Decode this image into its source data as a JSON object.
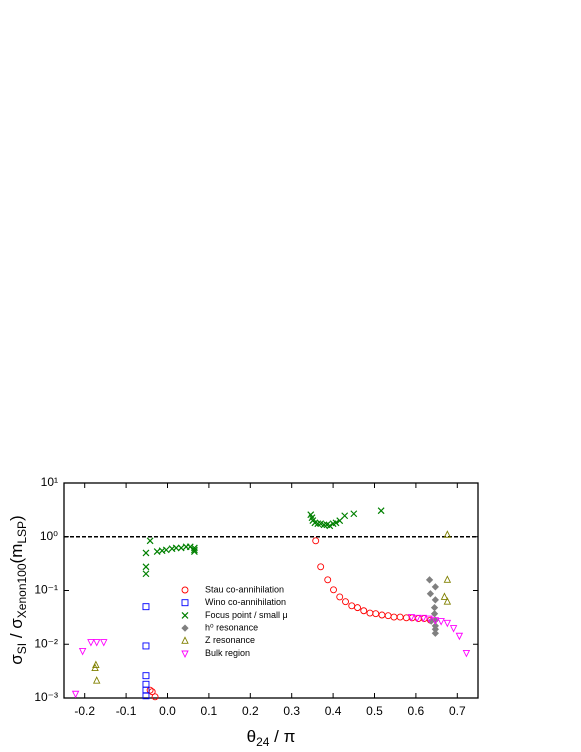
{
  "chart_data": {
    "type": "scatter",
    "xlabel": [
      "θ",
      "24",
      " / π"
    ],
    "ylabel": [
      "σ",
      "SI",
      " / σ",
      "Xenon100",
      "(m",
      "LSP",
      ")"
    ],
    "xlim": [
      -0.25,
      0.75
    ],
    "ylim": [
      0.001,
      10
    ],
    "log_y": true,
    "xticks": [
      -0.2,
      -0.1,
      {
        "value": 0,
        "label": "0.0"
      },
      0.1,
      0.2,
      0.3,
      0.4,
      0.5,
      0.6,
      0.7
    ],
    "yticks": [
      {
        "value": 0.001,
        "label": "10⁻³"
      },
      {
        "value": 0.01,
        "label": "10⁻²"
      },
      {
        "value": 0.1,
        "label": "10⁻¹"
      },
      {
        "value": 1,
        "label": "10⁰"
      },
      {
        "value": 10,
        "label": "10¹"
      }
    ],
    "hline": 1,
    "legend": "lower-left",
    "series": [
      {
        "name": "Stau co-annihilation",
        "color": "#ff0000",
        "marker": "circle",
        "x": [
          0.358,
          0.37,
          0.387,
          0.401,
          0.416,
          0.43,
          0.445,
          0.459,
          0.474,
          0.489,
          0.503,
          0.518,
          0.533,
          0.547,
          0.562,
          0.577,
          0.591,
          0.606,
          0.62,
          0.635,
          -0.042,
          -0.037,
          -0.03
        ],
        "values": [
          0.84,
          0.276,
          0.158,
          0.103,
          0.076,
          0.062,
          0.052,
          0.048,
          0.042,
          0.038,
          0.037,
          0.035,
          0.034,
          0.032,
          0.032,
          0.031,
          0.031,
          0.03,
          0.03,
          0.028,
          0.0014,
          0.00131,
          0.00105
        ]
      },
      {
        "name": "Wino co-annihilation",
        "color": "#0000ff",
        "marker": "square",
        "x": [
          -0.052,
          -0.052,
          -0.052,
          -0.052,
          -0.052,
          -0.052
        ],
        "values": [
          0.05,
          0.0093,
          0.0026,
          0.0018,
          0.0014,
          0.0011
        ]
      },
      {
        "name": "Focus point / small μ",
        "color": "#008000",
        "marker": "cross",
        "x": [
          -0.042,
          -0.052,
          -0.052,
          -0.052,
          -0.025,
          -0.013,
          -0.003,
          0.011,
          0.021,
          0.033,
          0.045,
          0.055,
          0.065,
          0.065,
          0.065,
          0.346,
          0.349,
          0.351,
          0.356,
          0.363,
          0.37,
          0.378,
          0.385,
          0.392,
          0.4,
          0.407,
          0.416,
          0.428,
          0.45,
          0.516
        ],
        "values": [
          0.84,
          0.5,
          0.276,
          0.205,
          0.53,
          0.55,
          0.57,
          0.6,
          0.62,
          0.62,
          0.65,
          0.65,
          0.62,
          0.57,
          0.53,
          2.57,
          2.26,
          2.0,
          1.82,
          1.75,
          1.75,
          1.67,
          1.67,
          1.6,
          1.75,
          1.82,
          1.99,
          2.46,
          2.68,
          3.05
        ]
      },
      {
        "name": "h⁰ resonance",
        "color": "#808080",
        "marker": "diamond",
        "x": [
          0.633,
          0.647,
          0.635,
          0.647,
          0.645,
          0.645,
          0.647,
          0.647,
          0.647,
          0.647,
          0.637
        ],
        "values": [
          0.158,
          0.117,
          0.087,
          0.067,
          0.048,
          0.037,
          0.028,
          0.022,
          0.019,
          0.016,
          0.027
        ]
      },
      {
        "name": "Z resonance",
        "color": "#808000",
        "marker": "triangle-up",
        "x": [
          -0.173,
          -0.175,
          -0.171,
          0.676,
          0.676,
          0.669,
          0.676
        ],
        "values": [
          0.0041,
          0.0036,
          0.0021,
          1.09,
          0.158,
          0.076,
          0.062
        ]
      },
      {
        "name": "Bulk region",
        "color": "#ff00ff",
        "marker": "triangle-down",
        "x": [
          -0.222,
          -0.205,
          -0.185,
          -0.171,
          -0.154,
          0.589,
          0.603,
          0.618,
          0.632,
          0.647,
          0.661,
          0.676,
          0.691,
          0.705,
          0.722
        ],
        "values": [
          0.0012,
          0.0075,
          0.011,
          0.011,
          0.011,
          0.032,
          0.031,
          0.031,
          0.03,
          0.028,
          0.027,
          0.025,
          0.02,
          0.0144,
          0.0069
        ]
      }
    ]
  }
}
